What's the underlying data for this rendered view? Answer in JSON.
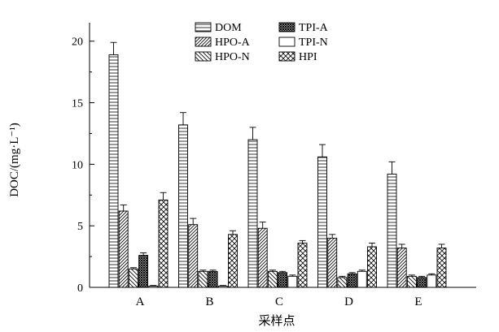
{
  "chart_data": {
    "type": "bar",
    "categories": [
      "A",
      "B",
      "C",
      "D",
      "E"
    ],
    "series": [
      {
        "name": "DOM",
        "pattern": "hlines",
        "values": [
          18.9,
          13.2,
          12.0,
          10.6,
          9.2
        ],
        "errors": [
          1.0,
          1.0,
          1.0,
          1.0,
          1.0
        ]
      },
      {
        "name": "HPO-A",
        "pattern": "diag",
        "values": [
          6.2,
          5.1,
          4.8,
          4.0,
          3.2
        ],
        "errors": [
          0.5,
          0.5,
          0.5,
          0.3,
          0.3
        ]
      },
      {
        "name": "HPO-N",
        "pattern": "backdiag",
        "values": [
          1.5,
          1.3,
          1.3,
          0.8,
          0.9
        ],
        "errors": [
          0.1,
          0.1,
          0.1,
          0.1,
          0.1
        ]
      },
      {
        "name": "TPI-A",
        "pattern": "dense",
        "values": [
          2.6,
          1.3,
          1.2,
          1.1,
          0.8
        ],
        "errors": [
          0.2,
          0.1,
          0.1,
          0.1,
          0.1
        ]
      },
      {
        "name": "TPI-N",
        "pattern": "plain",
        "values": [
          0.1,
          0.1,
          0.9,
          1.3,
          1.0
        ],
        "errors": [
          0.05,
          0.05,
          0.1,
          0.1,
          0.1
        ]
      },
      {
        "name": "HPI",
        "pattern": "cross",
        "values": [
          7.1,
          4.3,
          3.6,
          3.3,
          3.2
        ],
        "errors": [
          0.6,
          0.3,
          0.2,
          0.3,
          0.3
        ]
      }
    ],
    "title": "",
    "xlabel": "采样点",
    "ylabel": "DOC/(mg·L⁻¹)",
    "yticks": [
      "0",
      "5",
      "10",
      "15",
      "20"
    ],
    "ylim": [
      0,
      21.5
    ],
    "grid": false,
    "legend_position": "top-center"
  }
}
